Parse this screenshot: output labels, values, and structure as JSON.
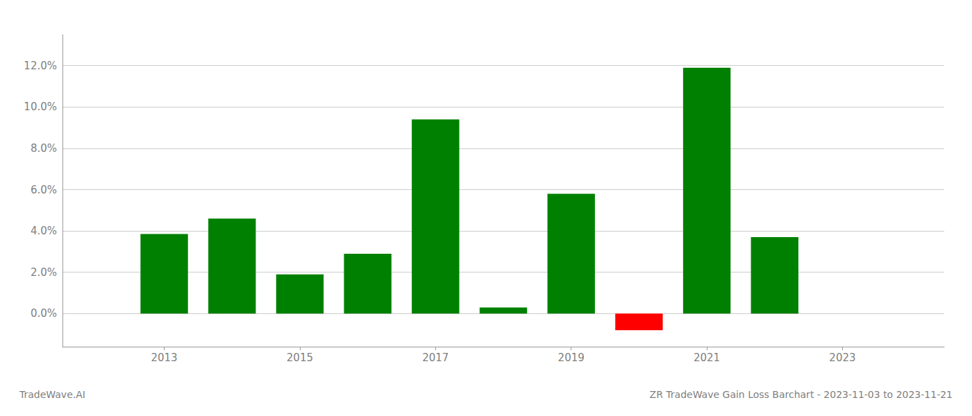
{
  "chart_data": {
    "type": "bar",
    "x": [
      2013,
      2014,
      2015,
      2016,
      2017,
      2018,
      2019,
      2020,
      2021,
      2022
    ],
    "values": [
      0.0385,
      0.046,
      0.019,
      0.029,
      0.094,
      0.003,
      0.058,
      -0.008,
      0.119,
      0.037
    ],
    "colors": [
      "#008000",
      "#008000",
      "#008000",
      "#008000",
      "#008000",
      "#008000",
      "#008000",
      "#ff0000",
      "#008000",
      "#008000"
    ],
    "xlim": [
      2011.5,
      2024.5
    ],
    "xticks": [
      2013,
      2015,
      2017,
      2019,
      2021,
      2023
    ],
    "ylim": [
      -0.016,
      0.135
    ],
    "yticks": [
      {
        "value": 0.0,
        "label": "0.0%"
      },
      {
        "value": 0.02,
        "label": "2.0%"
      },
      {
        "value": 0.04,
        "label": "4.0%"
      },
      {
        "value": 0.06,
        "label": "6.0%"
      },
      {
        "value": 0.08,
        "label": "8.0%"
      },
      {
        "value": 0.1,
        "label": "10.0%"
      },
      {
        "value": 0.12,
        "label": "12.0%"
      }
    ],
    "grid": true,
    "annotations": [
      "TradeWave.AI",
      "ZR TradeWave Gain Loss Barchart - 2023-11-03 to 2023-11-21"
    ]
  }
}
